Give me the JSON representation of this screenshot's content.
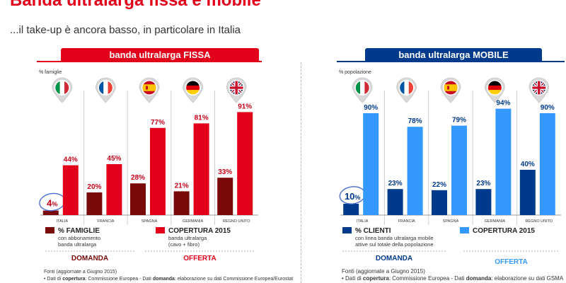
{
  "header": {
    "title": "Banda ultralarga fissa e mobile",
    "subtitle": "...il take-up è ancora basso, in particolare in Italia"
  },
  "colors": {
    "fixed_header": "#e2001a",
    "mobile_header": "#003a8c",
    "fixed_demand": "#7a0a0a",
    "fixed_offer": "#e2001a",
    "mobile_demand": "#003a8c",
    "mobile_offer": "#3399ff",
    "label_red": "#c8001a"
  },
  "sources": {
    "line1": "Fonti (aggiornate a Giugno 2015)",
    "line2_prefix": "•  Dati di ",
    "line2_bold1": "copertura",
    "line2_mid": ": Commissione Europea - Dati ",
    "line2_bold2": "domanda",
    "line2_suffix": ": elaborazione su dati GSMA"
  },
  "chart_data": [
    {
      "type": "bar",
      "title": "banda ultralarga FISSA",
      "unit_label": "% famiglie",
      "categories": [
        "ITALIA",
        "FRANCIA",
        "SPAGNA",
        "GERMANIA",
        "REGNO UNITO"
      ],
      "category_icons": [
        "flag-italy-icon",
        "flag-france-icon",
        "flag-spain-icon",
        "flag-germany-icon",
        "flag-uk-icon"
      ],
      "value_suffix": "%",
      "ylim": [
        0,
        100
      ],
      "series": [
        {
          "name": "% FAMIGLIE",
          "description": "con abbonamento banda ultralarga",
          "values": [
            4,
            20,
            28,
            21,
            33
          ]
        },
        {
          "name": "COPERTURA 2015",
          "description": "banda ultralarga (cavo + fibro)",
          "values": [
            44,
            45,
            77,
            81,
            91
          ]
        }
      ],
      "demand_label": "DOMANDA",
      "offer_label": "OFFERTA",
      "highlight_category": "ITALIA",
      "legend_position": "bottom"
    },
    {
      "type": "bar",
      "title": "banda ultralarga MOBILE",
      "unit_label": "% popolazione",
      "categories": [
        "ITALIA",
        "FRANCIA",
        "SPAGNA",
        "GERMANIA",
        "REGNO UNITO"
      ],
      "category_icons": [
        "flag-italy-icon",
        "flag-france-icon",
        "flag-spain-icon",
        "flag-germany-icon",
        "flag-uk-icon"
      ],
      "value_suffix": "%",
      "ylim": [
        0,
        100
      ],
      "series": [
        {
          "name": "% CLIENTI",
          "description": "con linea banda ultralarga mobile attive sul totale della popolazione",
          "values": [
            10,
            23,
            22,
            23,
            40
          ]
        },
        {
          "name": "COPERTURA 2015",
          "description": "",
          "values": [
            90,
            78,
            79,
            94,
            90
          ]
        }
      ],
      "demand_label": "DOMANDA",
      "offer_label": "OFFERTA",
      "highlight_category": "ITALIA",
      "legend_position": "bottom"
    }
  ]
}
